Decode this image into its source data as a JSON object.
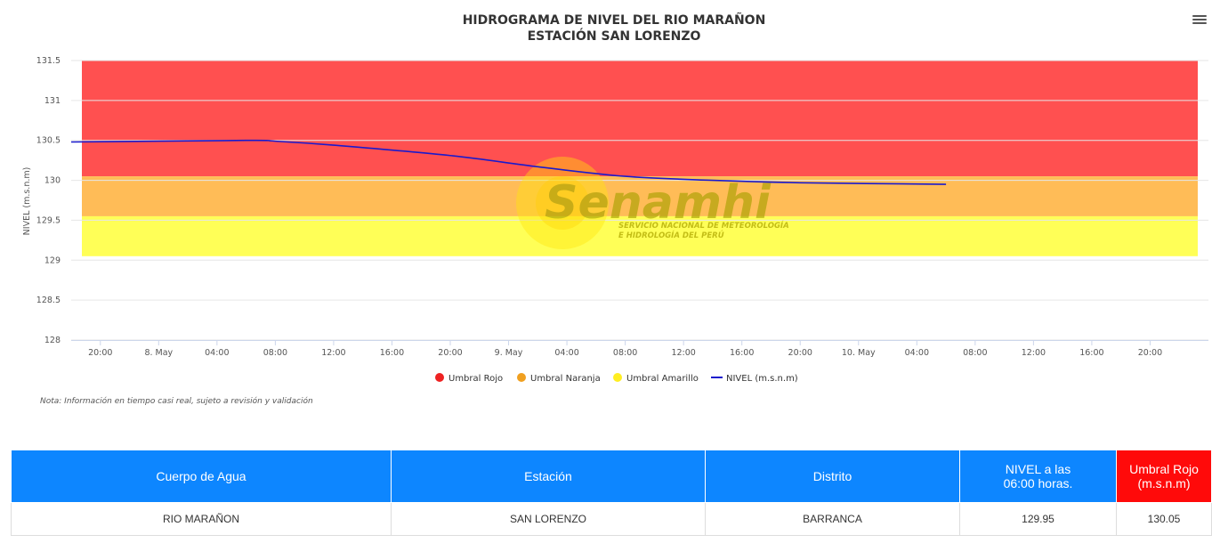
{
  "chart_data": {
    "type": "line",
    "title": "HIDROGRAMA DE NIVEL DEL RIO MARAÑON",
    "subtitle": "ESTACIÓN SAN LORENZO",
    "ylabel": "NIVEL (m.s.n.m)",
    "ylim": [
      128,
      131.5
    ],
    "y_ticks": [
      "128",
      "128.5",
      "129",
      "129.5",
      "130",
      "130.5",
      "131",
      "131.5"
    ],
    "x_ticks": [
      "20:00",
      "8. May",
      "04:00",
      "08:00",
      "12:00",
      "16:00",
      "20:00",
      "9. May",
      "04:00",
      "08:00",
      "12:00",
      "16:00",
      "20:00",
      "10. May",
      "04:00",
      "08:00",
      "12:00",
      "16:00",
      "20:00"
    ],
    "x_start": "7 May 18:00",
    "x_end": "11 May 00:00",
    "bands": [
      {
        "name": "Umbral Rojo",
        "from": 130.05,
        "to": 131.5,
        "color": "#ff5050"
      },
      {
        "name": "Umbral Naranja",
        "from": 129.55,
        "to": 130.05,
        "color": "#ffbc57"
      },
      {
        "name": "Umbral Amarillo",
        "from": 129.05,
        "to": 129.55,
        "color": "#ffff57"
      }
    ],
    "series": [
      {
        "name": "NIVEL (m.s.n.m)",
        "color": "#1a1acc",
        "points": [
          [
            "7 May 18:00",
            130.48
          ],
          [
            "8 May 06:00",
            130.5
          ],
          [
            "8 May 08:00",
            130.49
          ],
          [
            "8 May 12:00",
            130.44
          ],
          [
            "8 May 20:00",
            130.31
          ],
          [
            "9 May 02:00",
            130.17
          ],
          [
            "9 May 08:00",
            130.05
          ],
          [
            "9 May 14:00",
            130.0
          ],
          [
            "9 May 20:00",
            129.97
          ],
          [
            "10 May 06:00",
            129.95
          ]
        ]
      }
    ],
    "legend": [
      "Umbral Rojo",
      "Umbral Naranja",
      "Umbral Amarillo",
      "NIVEL (m.s.n.m)"
    ],
    "legend_placement": "bottom-center",
    "grid": true
  },
  "note": "Nota: Información en tiempo casi real, sujeto a revisión y validación",
  "watermark": {
    "brand": "Senamhi",
    "line1": "SERVICIO NACIONAL DE METEOROLOGÍA",
    "line2": "E HIDROLOGÍA DEL PERÚ"
  },
  "menu_icon": "hamburger-menu-icon",
  "table": {
    "headers": [
      "Cuerpo de Agua",
      "Estación",
      "Distrito",
      "NIVEL a las 06:00 horas.",
      "Umbral Rojo (m.s.n.m)"
    ],
    "header_nivel_line1": "NIVEL a las",
    "header_nivel_line2": "06:00 horas.",
    "row": [
      "RIO MARAÑON",
      "SAN LORENZO",
      "BARRANCA",
      "129.95",
      "130.05"
    ],
    "colors": {
      "header_blue": "#0d86ff",
      "header_red": "#ff0a0a"
    }
  }
}
